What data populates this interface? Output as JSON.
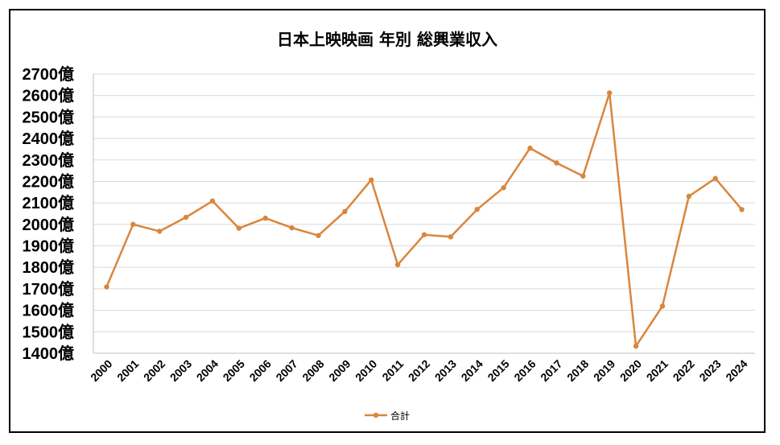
{
  "chart_data": {
    "type": "line",
    "title": "日本上映映画 年別 総興業収入",
    "xlabel": "",
    "ylabel": "",
    "ylim": [
      1400,
      2700
    ],
    "ytick_step": 100,
    "ytick_suffix": "億",
    "grid": true,
    "legend_position": "bottom",
    "color": "#D9863D",
    "categories": [
      "2000",
      "2001",
      "2002",
      "2003",
      "2004",
      "2005",
      "2006",
      "2007",
      "2008",
      "2009",
      "2010",
      "2011",
      "2012",
      "2013",
      "2014",
      "2015",
      "2016",
      "2017",
      "2018",
      "2019",
      "2020",
      "2021",
      "2022",
      "2023",
      "2024"
    ],
    "series": [
      {
        "name": "合計",
        "values": [
          1709,
          2000,
          1968,
          2033,
          2109,
          1982,
          2029,
          1984,
          1948,
          2060,
          2207,
          1812,
          1952,
          1942,
          2070,
          2171,
          2355,
          2286,
          2225,
          2612,
          1433,
          1619,
          2131,
          2214,
          2069
        ]
      }
    ]
  }
}
